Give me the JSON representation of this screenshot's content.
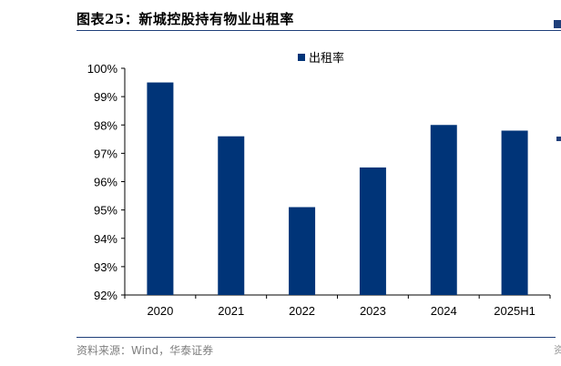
{
  "figure": {
    "label": "图表25：",
    "title": "新城控股持有物业出租率",
    "source": "资料来源：Wind，华泰证券",
    "edge_glyph": "资"
  },
  "colors": {
    "bar": "#003478",
    "rule": "#1f3f7a"
  },
  "chart_data": {
    "type": "bar",
    "categories": [
      "2020",
      "2021",
      "2022",
      "2023",
      "2024",
      "2025H1"
    ],
    "series": [
      {
        "name": "出租率",
        "values": [
          99.5,
          97.6,
          95.1,
          96.5,
          98.0,
          97.8
        ]
      }
    ],
    "ylim": [
      92,
      100
    ],
    "yticks": [
      92,
      93,
      94,
      95,
      96,
      97,
      98,
      99,
      100
    ],
    "ytick_labels": [
      "92%",
      "93%",
      "94%",
      "95%",
      "96%",
      "97%",
      "98%",
      "99%",
      "100%"
    ],
    "legend_position": "top-center",
    "grid": false
  }
}
